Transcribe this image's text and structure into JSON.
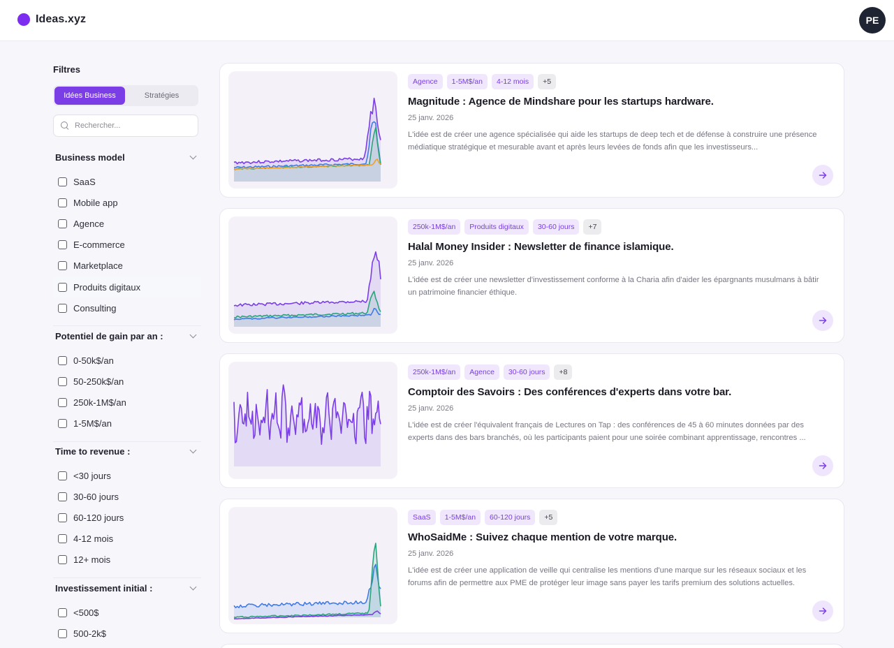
{
  "header": {
    "brand": "Ideas.xyz",
    "avatar_initials": "PE",
    "accent": "#7c2df0"
  },
  "sidebar": {
    "title": "Filtres",
    "tabs": [
      {
        "label": "Idées Business",
        "active": true
      },
      {
        "label": "Stratégies",
        "active": false
      }
    ],
    "search_placeholder": "Rechercher...",
    "groups": [
      {
        "title": "Business model",
        "options": [
          "SaaS",
          "Mobile app",
          "Agence",
          "E-commerce",
          "Marketplace",
          "Produits digitaux",
          "Consulting"
        ]
      },
      {
        "title": "Potentiel de gain par an :",
        "options": [
          "0-50k$/an",
          "50-250k$/an",
          "250k-1M$/an",
          "1-5M$/an"
        ]
      },
      {
        "title": "Time to revenue :",
        "options": [
          "<30 jours",
          "30-60 jours",
          "60-120 jours",
          "4-12 mois",
          "12+ mois"
        ]
      },
      {
        "title": "Investissement initial :",
        "options": [
          "<500$",
          "500-2k$"
        ]
      }
    ]
  },
  "cards": [
    {
      "tags": [
        "Agence",
        "1-5M$/an",
        "4-12 mois"
      ],
      "more": "+5",
      "title": "Magnitude : Agence de Mindshare pour les startups hardware.",
      "date": "25 janv. 2026",
      "description": "L'idée est de créer une agence spécialisée qui aide les startups de deep tech et de défense à construire une présence médiatique stratégique et mesurable avant et après leurs levées de fonds afin que les investisseurs...",
      "chart": "spike"
    },
    {
      "tags": [
        "250k-1M$/an",
        "Produits digitaux",
        "30-60 jours"
      ],
      "more": "+7",
      "title": "Halal Money Insider : Newsletter de finance islamique.",
      "date": "25 janv. 2026",
      "description": "L'idée est de créer une newsletter d'investissement conforme à la Charia afin d'aider les épargnants musulmans à bâtir un patrimoine financier éthique.",
      "chart": "spike2"
    },
    {
      "tags": [
        "250k-1M$/an",
        "Agence",
        "30-60 jours"
      ],
      "more": "+8",
      "title": "Comptoir des Savoirs : Des conférences d'experts dans votre bar.",
      "date": "25 janv. 2026",
      "description": "L'idée est de créer l'équivalent français de Lectures on Tap : des conférences de 45 à 60 minutes données par des experts dans des bars branchés, où les participants paient pour une soirée combinant apprentissage, rencontres ...",
      "chart": "noisy"
    },
    {
      "tags": [
        "SaaS",
        "1-5M$/an",
        "60-120 jours"
      ],
      "more": "+5",
      "title": "WhoSaidMe : Suivez chaque mention de votre marque.",
      "date": "25 janv. 2026",
      "description": "L'idée est de créer une application de veille qui centralise les mentions d'une marque sur les réseaux sociaux et les forums afin de permettre aux PME de protéger leur image sans payer les tarifs premium des solutions actuelles.",
      "chart": "spike3"
    }
  ]
}
